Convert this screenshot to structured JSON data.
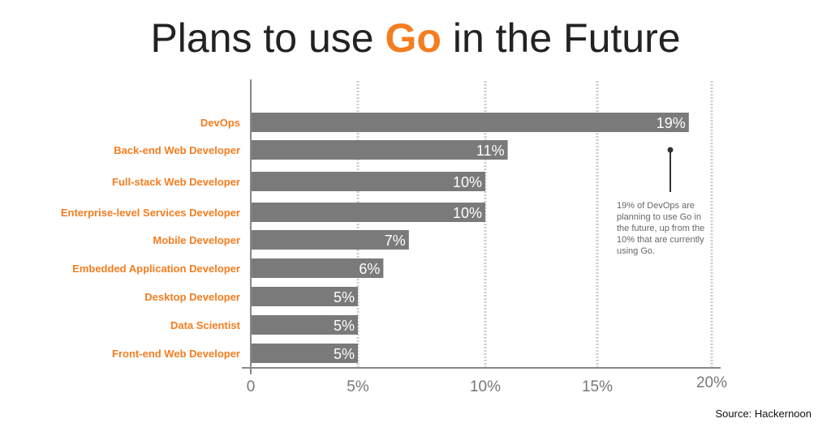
{
  "title": {
    "prefix": "Plans to use ",
    "highlight": "Go",
    "suffix": " in the Future"
  },
  "source": "Source: Hackernoon",
  "annotation": "19% of DevOps are planning to use Go in the future, up from the 10% that are currently using Go.",
  "colors": {
    "accent": "#f47d20",
    "bar": "#7a7a7a",
    "grid": "#cccccc",
    "text": "#222222"
  },
  "chart_data": {
    "type": "bar",
    "orientation": "horizontal",
    "categories": [
      "DevOps",
      "Back-end Web Developer",
      "Full-stack Web Developer",
      "Enterprise-level Services Developer",
      "Mobile Developer",
      "Embedded Application Developer",
      "Desktop Developer",
      "Data Scientist",
      "Front-end Web Developer"
    ],
    "values": [
      19,
      11,
      10,
      10,
      7,
      6,
      5,
      5,
      5
    ],
    "value_labels": [
      "19%",
      "11%",
      "10%",
      "10%",
      "7%",
      "6%",
      "5%",
      "5%",
      "5%"
    ],
    "xlim": [
      0,
      20
    ],
    "xticks": [
      0,
      5,
      10,
      15,
      20
    ],
    "xtick_labels": [
      "0",
      "5%",
      "10%",
      "15%",
      "20%"
    ],
    "grid": "vertical dotted",
    "title": "Plans to use Go in the Future"
  }
}
